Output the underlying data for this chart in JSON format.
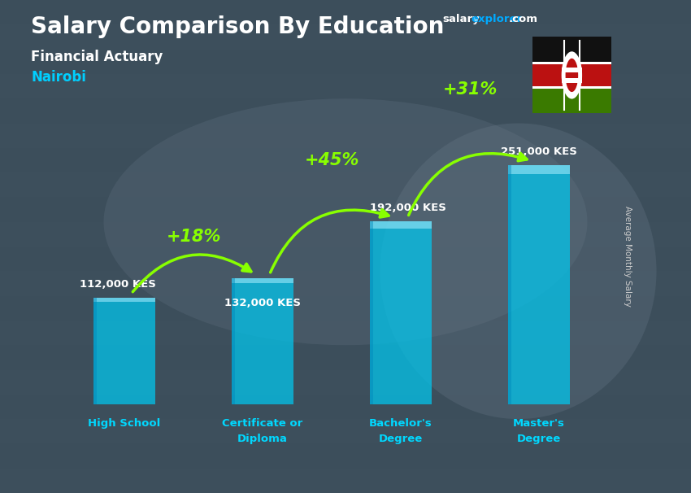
{
  "title": "Salary Comparison By Education",
  "subtitle": "Financial Actuary",
  "location": "Nairobi",
  "ylabel": "Average Monthly Salary",
  "categories": [
    "High School",
    "Certificate or\nDiploma",
    "Bachelor's\nDegree",
    "Master's\nDegree"
  ],
  "values": [
    112000,
    132000,
    192000,
    251000
  ],
  "value_labels": [
    "112,000 KES",
    "132,000 KES",
    "192,000 KES",
    "251,000 KES"
  ],
  "pct_labels": [
    "+18%",
    "+45%",
    "+31%"
  ],
  "bar_color": "#00c8f0",
  "bar_top_color": "#55e5ff",
  "bar_alpha": 0.72,
  "bg_color": "#4a5a6a",
  "title_color": "#ffffff",
  "subtitle_color": "#ffffff",
  "location_color": "#00cfff",
  "value_label_color": "#ffffff",
  "pct_color": "#88ff00",
  "arrow_color": "#88ff00",
  "xtick_color": "#00d8ff",
  "ylabel_color": "#cccccc",
  "bar_width": 0.45,
  "ylim_max": 310000,
  "flag_colors": [
    "#006600",
    "#cc0000",
    "#111111"
  ],
  "salary_text": "salary",
  "explorer_text": "explorer",
  "dot_com_text": ".com"
}
